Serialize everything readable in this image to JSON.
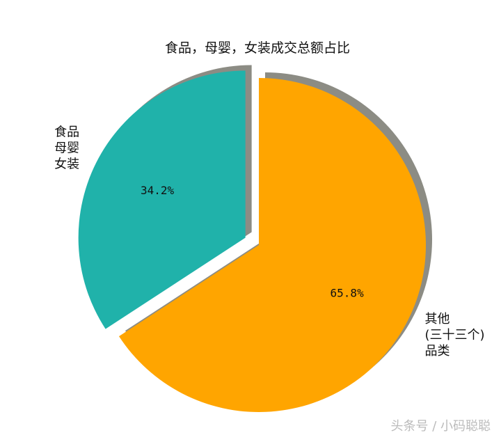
{
  "chart_data": {
    "type": "pie",
    "title": "食品，母婴，女装成交总额占比",
    "slices": [
      {
        "label_lines": [
          "食品",
          "母婴",
          "女装"
        ],
        "value": 34.2,
        "pct_label": "34.2%",
        "color": "#20b2aa",
        "exploded": true
      },
      {
        "label_lines": [
          "其他",
          "(三十三个)",
          "品类"
        ],
        "value": 65.8,
        "pct_label": "65.8%",
        "color": "#ffa500",
        "exploded": false
      }
    ],
    "start_angle_deg": 90,
    "direction": "counterclockwise",
    "shadow": true,
    "shadow_color": "#8c8c84"
  },
  "watermark": "头条号 / 小码聪聪"
}
